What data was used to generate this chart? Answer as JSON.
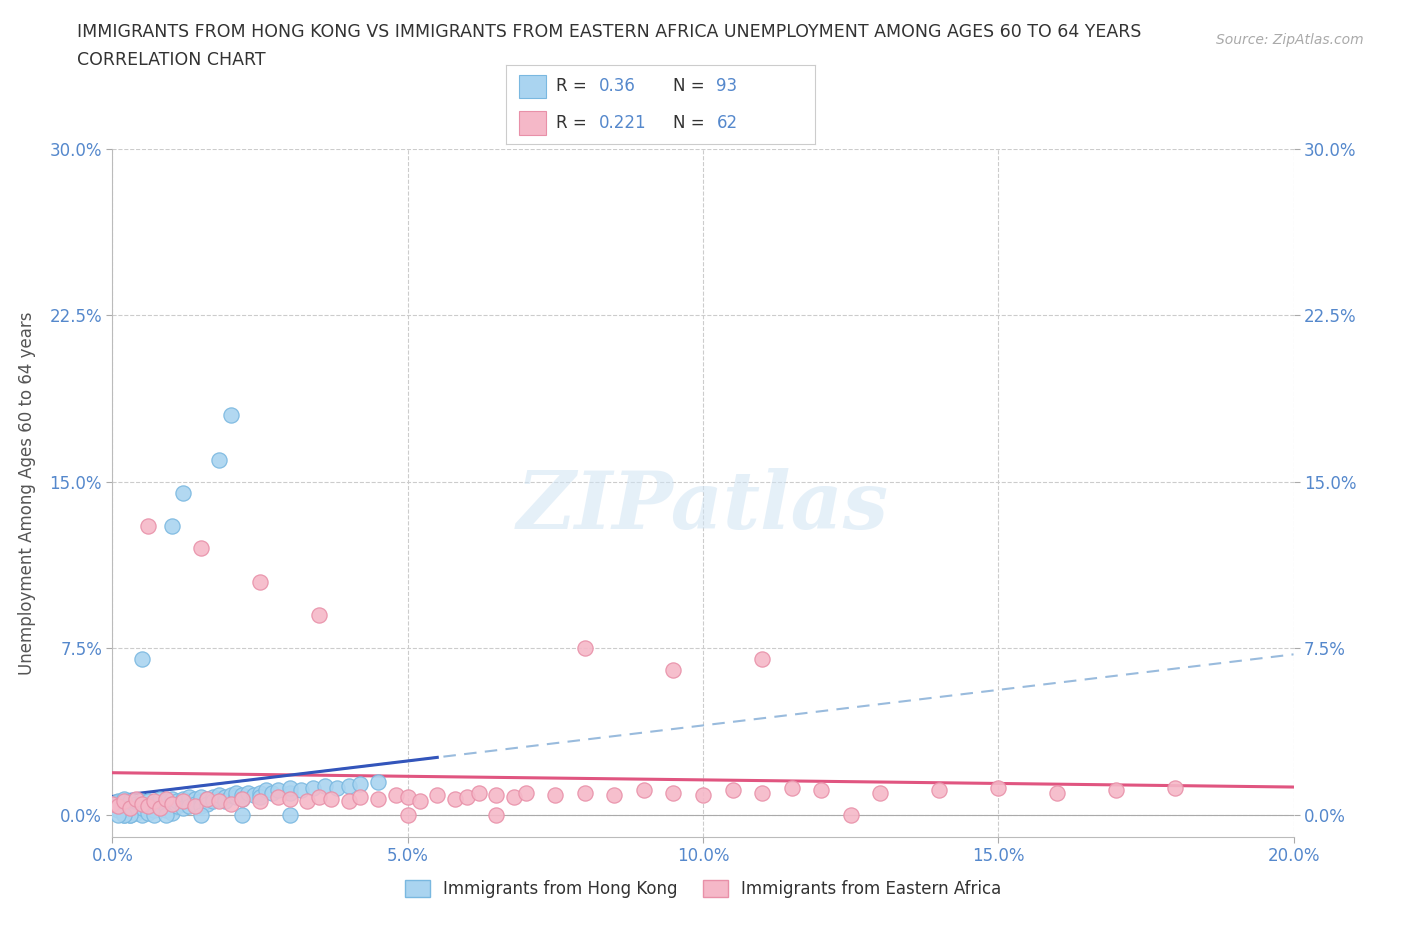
{
  "title_line1": "IMMIGRANTS FROM HONG KONG VS IMMIGRANTS FROM EASTERN AFRICA UNEMPLOYMENT AMONG AGES 60 TO 64 YEARS",
  "title_line2": "CORRELATION CHART",
  "source": "Source: ZipAtlas.com",
  "ylabel": "Unemployment Among Ages 60 to 64 years",
  "xmin": 0.0,
  "xmax": 0.2,
  "ymin": -0.01,
  "ymax": 0.3,
  "yplotmin": 0.0,
  "yticks": [
    0.0,
    0.075,
    0.15,
    0.225,
    0.3
  ],
  "ytick_labels": [
    "0.0%",
    "7.5%",
    "15.0%",
    "22.5%",
    "30.0%"
  ],
  "xticks": [
    0.0,
    0.05,
    0.1,
    0.15,
    0.2
  ],
  "xtick_labels": [
    "0.0%",
    "5.0%",
    "10.0%",
    "15.0%",
    "20.0%"
  ],
  "watermark_text": "ZIPatlas",
  "hk_color": "#aad4f0",
  "ea_color": "#f5b8c8",
  "hk_edge_color": "#7ab8e0",
  "ea_edge_color": "#e890a8",
  "hk_line_color": "#3355bb",
  "ea_line_color": "#e05580",
  "hk_dash_color": "#99bbdd",
  "hk_R": 0.36,
  "hk_N": 93,
  "ea_R": 0.221,
  "ea_N": 62,
  "legend_hk": "Immigrants from Hong Kong",
  "legend_ea": "Immigrants from Eastern Africa",
  "background_color": "#ffffff",
  "grid_color": "#cccccc",
  "title_color": "#333333",
  "tick_color": "#5588cc",
  "axis_label_color": "#555555",
  "source_color": "#aaaaaa",
  "hk_x": [
    0.0,
    0.0,
    0.001,
    0.001,
    0.001,
    0.002,
    0.002,
    0.002,
    0.002,
    0.002,
    0.003,
    0.003,
    0.003,
    0.003,
    0.004,
    0.004,
    0.004,
    0.005,
    0.005,
    0.005,
    0.005,
    0.005,
    0.006,
    0.006,
    0.006,
    0.007,
    0.007,
    0.007,
    0.008,
    0.008,
    0.008,
    0.009,
    0.009,
    0.009,
    0.01,
    0.01,
    0.01,
    0.01,
    0.011,
    0.011,
    0.012,
    0.012,
    0.012,
    0.013,
    0.013,
    0.013,
    0.014,
    0.014,
    0.015,
    0.015,
    0.015,
    0.016,
    0.016,
    0.017,
    0.017,
    0.018,
    0.018,
    0.019,
    0.019,
    0.02,
    0.021,
    0.021,
    0.022,
    0.022,
    0.023,
    0.024,
    0.025,
    0.025,
    0.026,
    0.027,
    0.028,
    0.03,
    0.03,
    0.032,
    0.034,
    0.036,
    0.038,
    0.04,
    0.042,
    0.045,
    0.018,
    0.02,
    0.012,
    0.01,
    0.005,
    0.003,
    0.002,
    0.001,
    0.007,
    0.009,
    0.015,
    0.022,
    0.03
  ],
  "hk_y": [
    0.003,
    0.005,
    0.002,
    0.004,
    0.006,
    0.001,
    0.003,
    0.005,
    0.007,
    0.0,
    0.002,
    0.004,
    0.006,
    0.0,
    0.003,
    0.005,
    0.001,
    0.002,
    0.004,
    0.006,
    0.0,
    0.003,
    0.004,
    0.006,
    0.001,
    0.003,
    0.005,
    0.002,
    0.003,
    0.005,
    0.007,
    0.004,
    0.006,
    0.002,
    0.003,
    0.005,
    0.007,
    0.001,
    0.004,
    0.006,
    0.005,
    0.007,
    0.003,
    0.006,
    0.008,
    0.004,
    0.007,
    0.005,
    0.006,
    0.008,
    0.004,
    0.007,
    0.005,
    0.008,
    0.006,
    0.007,
    0.009,
    0.008,
    0.006,
    0.009,
    0.008,
    0.01,
    0.009,
    0.007,
    0.01,
    0.009,
    0.01,
    0.008,
    0.011,
    0.01,
    0.011,
    0.01,
    0.012,
    0.011,
    0.012,
    0.013,
    0.012,
    0.013,
    0.014,
    0.015,
    0.16,
    0.18,
    0.145,
    0.13,
    0.07,
    0.0,
    0.0,
    0.0,
    0.0,
    0.0,
    0.0,
    0.0,
    0.0
  ],
  "ea_x": [
    0.0,
    0.001,
    0.002,
    0.003,
    0.004,
    0.005,
    0.006,
    0.007,
    0.008,
    0.009,
    0.01,
    0.012,
    0.014,
    0.016,
    0.018,
    0.02,
    0.022,
    0.025,
    0.028,
    0.03,
    0.033,
    0.035,
    0.037,
    0.04,
    0.042,
    0.045,
    0.048,
    0.05,
    0.052,
    0.055,
    0.058,
    0.06,
    0.062,
    0.065,
    0.068,
    0.07,
    0.075,
    0.08,
    0.085,
    0.09,
    0.095,
    0.1,
    0.105,
    0.11,
    0.115,
    0.12,
    0.13,
    0.14,
    0.15,
    0.16,
    0.17,
    0.18,
    0.006,
    0.015,
    0.025,
    0.035,
    0.05,
    0.065,
    0.08,
    0.095,
    0.11,
    0.125
  ],
  "ea_y": [
    0.005,
    0.004,
    0.006,
    0.003,
    0.007,
    0.005,
    0.004,
    0.006,
    0.003,
    0.007,
    0.005,
    0.006,
    0.004,
    0.007,
    0.006,
    0.005,
    0.007,
    0.006,
    0.008,
    0.007,
    0.006,
    0.008,
    0.007,
    0.006,
    0.008,
    0.007,
    0.009,
    0.008,
    0.006,
    0.009,
    0.007,
    0.008,
    0.01,
    0.009,
    0.008,
    0.01,
    0.009,
    0.01,
    0.009,
    0.011,
    0.01,
    0.009,
    0.011,
    0.01,
    0.012,
    0.011,
    0.01,
    0.011,
    0.012,
    0.01,
    0.011,
    0.012,
    0.13,
    0.12,
    0.105,
    0.09,
    0.0,
    0.0,
    0.075,
    0.065,
    0.07,
    0.0
  ]
}
